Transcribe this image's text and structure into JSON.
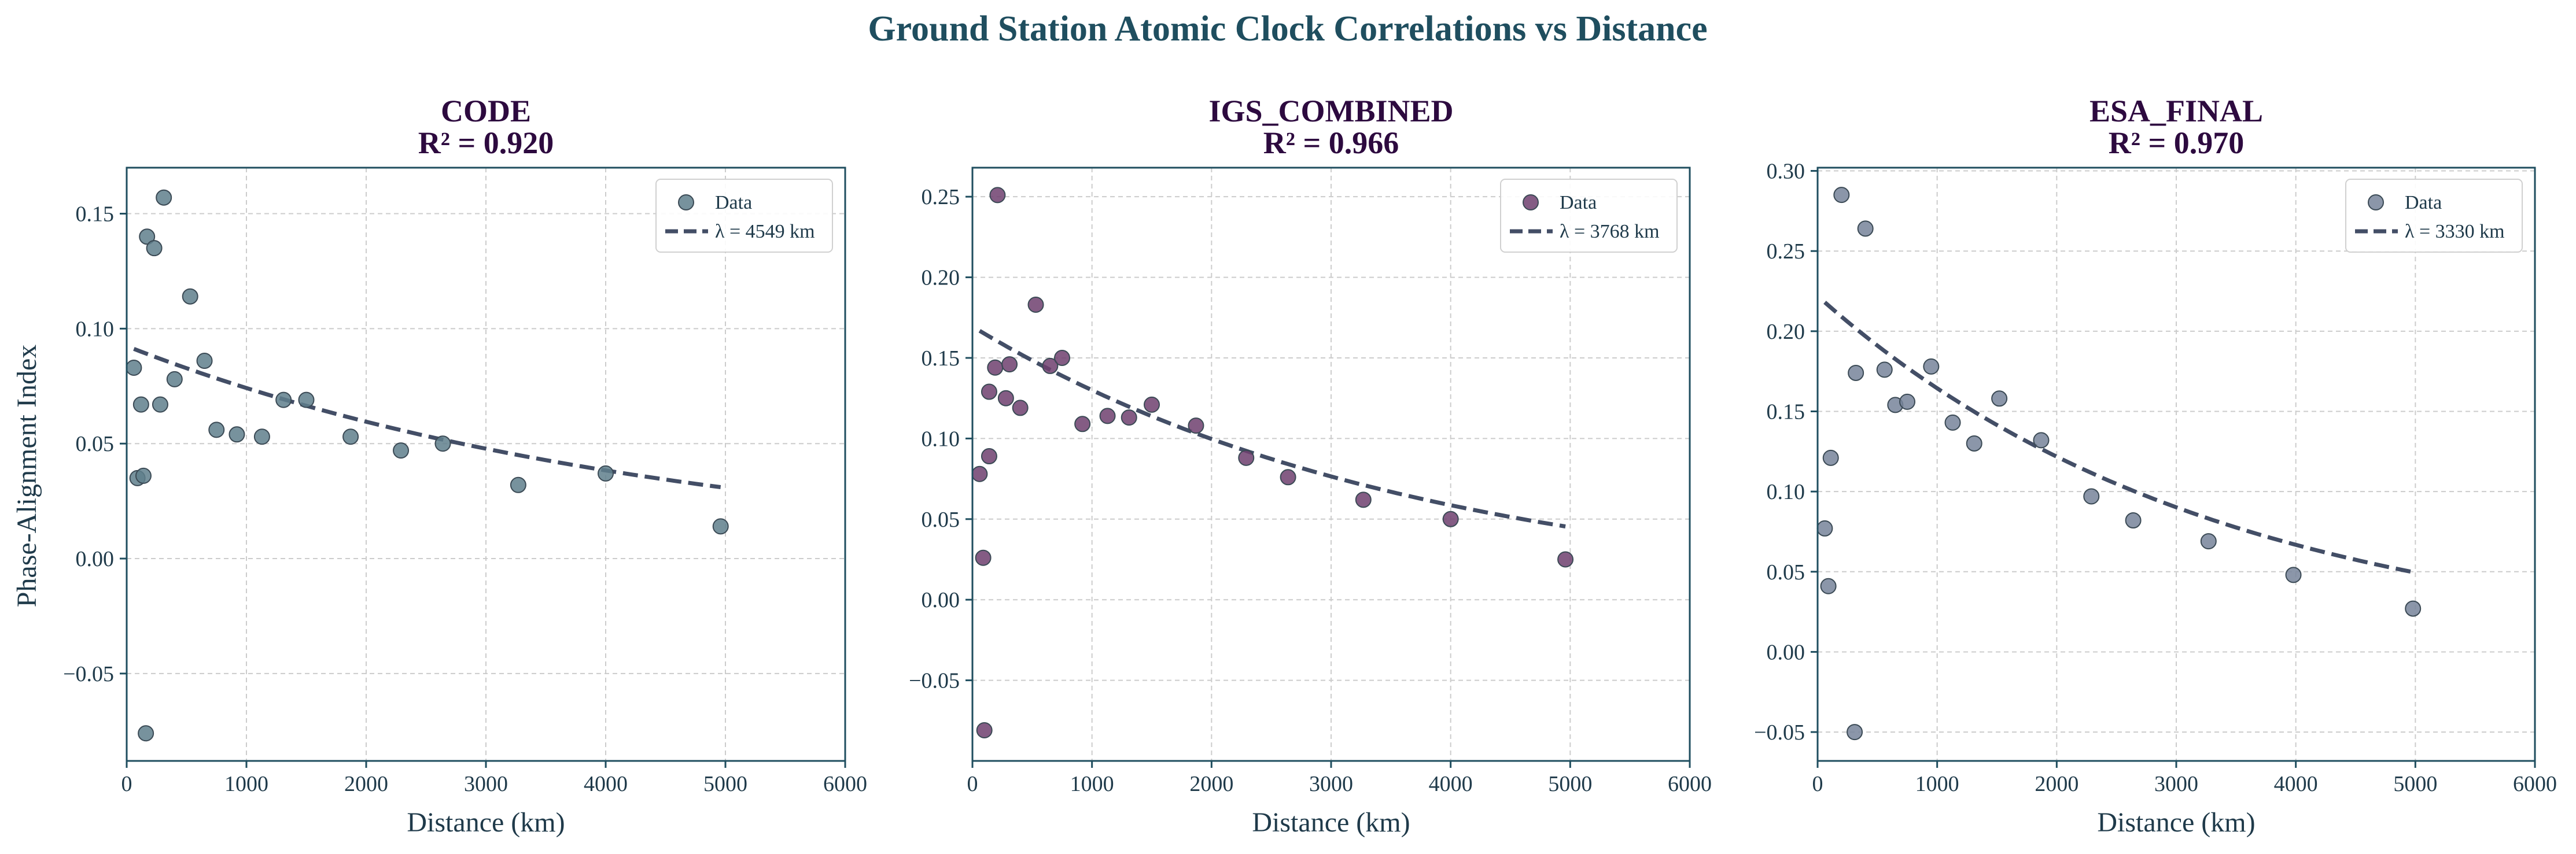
{
  "figure": {
    "title": "Ground Station Atomic Clock Correlations vs Distance",
    "ylabel": "Phase-Alignment Index"
  },
  "chart_data": [
    {
      "type": "scatter",
      "title": "CODE",
      "subtitle": "R² = 0.920",
      "xlabel": "Distance (km)",
      "ylabel": "Phase-Alignment Index",
      "xlim": [
        0,
        6000
      ],
      "ylim": [
        -0.088,
        0.17
      ],
      "xticks": [
        0,
        1000,
        2000,
        3000,
        4000,
        5000,
        6000
      ],
      "yticks": [
        -0.05,
        0.0,
        0.05,
        0.1,
        0.15
      ],
      "ytick_labels": [
        "−0.05",
        "0.00",
        "0.05",
        "0.10",
        "0.15"
      ],
      "grid": true,
      "legend_position": "top-right",
      "point_color": "#5f7f8c",
      "fit_color": "#434e66",
      "series": [
        {
          "name": "Data",
          "points": [
            [
              60,
              0.083
            ],
            [
              90,
              0.035
            ],
            [
              120,
              0.067
            ],
            [
              140,
              0.036
            ],
            [
              160,
              -0.076
            ],
            [
              170,
              0.14
            ],
            [
              230,
              0.135
            ],
            [
              280,
              0.067
            ],
            [
              310,
              0.157
            ],
            [
              400,
              0.078
            ],
            [
              530,
              0.114
            ],
            [
              650,
              0.086
            ],
            [
              750,
              0.056
            ],
            [
              920,
              0.054
            ],
            [
              1130,
              0.053
            ],
            [
              1310,
              0.069
            ],
            [
              1500,
              0.069
            ],
            [
              1870,
              0.053
            ],
            [
              2290,
              0.047
            ],
            [
              2640,
              0.05
            ],
            [
              3270,
              0.032
            ],
            [
              4000,
              0.037
            ],
            [
              4960,
              0.014
            ]
          ]
        },
        {
          "name": "λ = 4549 km",
          "fit": {
            "lambda": 4549,
            "a": 0.0924,
            "x_range": [
              60,
              4960
            ]
          }
        }
      ]
    },
    {
      "type": "scatter",
      "title": "IGS_COMBINED",
      "subtitle": "R² = 0.966",
      "xlabel": "Distance (km)",
      "ylabel": "",
      "xlim": [
        0,
        6000
      ],
      "ylim": [
        -0.1,
        0.268
      ],
      "xticks": [
        0,
        1000,
        2000,
        3000,
        4000,
        5000,
        6000
      ],
      "yticks": [
        -0.05,
        0.0,
        0.05,
        0.1,
        0.15,
        0.2,
        0.25
      ],
      "ytick_labels": [
        "−0.05",
        "0.00",
        "0.05",
        "0.10",
        "0.15",
        "0.20",
        "0.25"
      ],
      "grid": true,
      "legend_position": "top-right",
      "point_color": "#6e3f6e",
      "fit_color": "#434e66",
      "series": [
        {
          "name": "Data",
          "points": [
            [
              60,
              0.078
            ],
            [
              90,
              0.026
            ],
            [
              100,
              -0.081
            ],
            [
              140,
              0.089
            ],
            [
              140,
              0.129
            ],
            [
              190,
              0.144
            ],
            [
              210,
              0.251
            ],
            [
              280,
              0.125
            ],
            [
              310,
              0.146
            ],
            [
              400,
              0.119
            ],
            [
              530,
              0.183
            ],
            [
              650,
              0.145
            ],
            [
              750,
              0.15
            ],
            [
              920,
              0.109
            ],
            [
              1130,
              0.114
            ],
            [
              1310,
              0.113
            ],
            [
              1500,
              0.121
            ],
            [
              1870,
              0.108
            ],
            [
              2290,
              0.088
            ],
            [
              2640,
              0.076
            ],
            [
              3270,
              0.062
            ],
            [
              4000,
              0.05
            ],
            [
              4960,
              0.025
            ]
          ]
        },
        {
          "name": "λ = 3768 km",
          "fit": {
            "lambda": 3768,
            "a": 0.1695,
            "x_range": [
              60,
              4960
            ]
          }
        }
      ]
    },
    {
      "type": "scatter",
      "title": "ESA_FINAL",
      "subtitle": "R² = 0.970",
      "xlabel": "Distance (km)",
      "ylabel": "",
      "xlim": [
        0,
        6000
      ],
      "ylim": [
        -0.068,
        0.302
      ],
      "xticks": [
        0,
        1000,
        2000,
        3000,
        4000,
        5000,
        6000
      ],
      "yticks": [
        -0.05,
        0.0,
        0.05,
        0.1,
        0.15,
        0.2,
        0.25,
        0.3
      ],
      "ytick_labels": [
        "−0.05",
        "0.00",
        "0.05",
        "0.10",
        "0.15",
        "0.20",
        "0.25",
        "0.30"
      ],
      "grid": true,
      "legend_position": "top-right",
      "point_color": "#77849a",
      "fit_color": "#434e66",
      "series": [
        {
          "name": "Data",
          "points": [
            [
              60,
              0.077
            ],
            [
              90,
              0.041
            ],
            [
              110,
              0.121
            ],
            [
              200,
              0.285
            ],
            [
              310,
              -0.05
            ],
            [
              320,
              0.174
            ],
            [
              400,
              0.264
            ],
            [
              560,
              0.176
            ],
            [
              650,
              0.154
            ],
            [
              750,
              0.156
            ],
            [
              950,
              0.178
            ],
            [
              1130,
              0.143
            ],
            [
              1310,
              0.13
            ],
            [
              1520,
              0.158
            ],
            [
              1870,
              0.132
            ],
            [
              2290,
              0.097
            ],
            [
              2640,
              0.082
            ],
            [
              3270,
              0.069
            ],
            [
              3980,
              0.048
            ],
            [
              4980,
              0.027
            ]
          ]
        },
        {
          "name": "λ = 3330 km",
          "fit": {
            "lambda": 3330,
            "a": 0.222,
            "x_range": [
              60,
              4960
            ]
          }
        }
      ]
    }
  ]
}
